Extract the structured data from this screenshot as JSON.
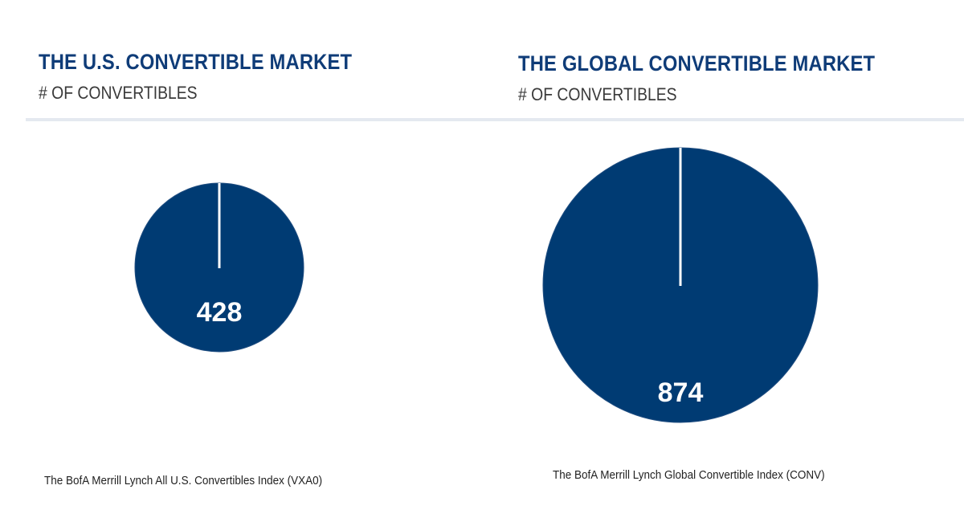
{
  "colors": {
    "title": "#0f3c78",
    "subtitle": "#3a3a3a",
    "pie_fill": "#003b73",
    "pie_marker": "#ffffff",
    "value_label": "#ffffff",
    "divider": "#e4e9f0"
  },
  "chart_data": [
    {
      "type": "pie",
      "title": "THE U.S. CONVERTIBLE MARKET",
      "subtitle": "# OF CONVERTIBLES",
      "categories": [
        "Convertibles"
      ],
      "values": [
        428
      ],
      "value_label": "428",
      "source": "The BofA Merrill Lynch All U.S. Convertibles Index (VXA0)"
    },
    {
      "type": "pie",
      "title": "THE GLOBAL CONVERTIBLE MARKET",
      "subtitle": "# OF CONVERTIBLES",
      "categories": [
        "Convertibles"
      ],
      "values": [
        874
      ],
      "value_label": "874",
      "source": "The BofA Merrill Lynch Global Convertible Index (CONV)"
    }
  ]
}
